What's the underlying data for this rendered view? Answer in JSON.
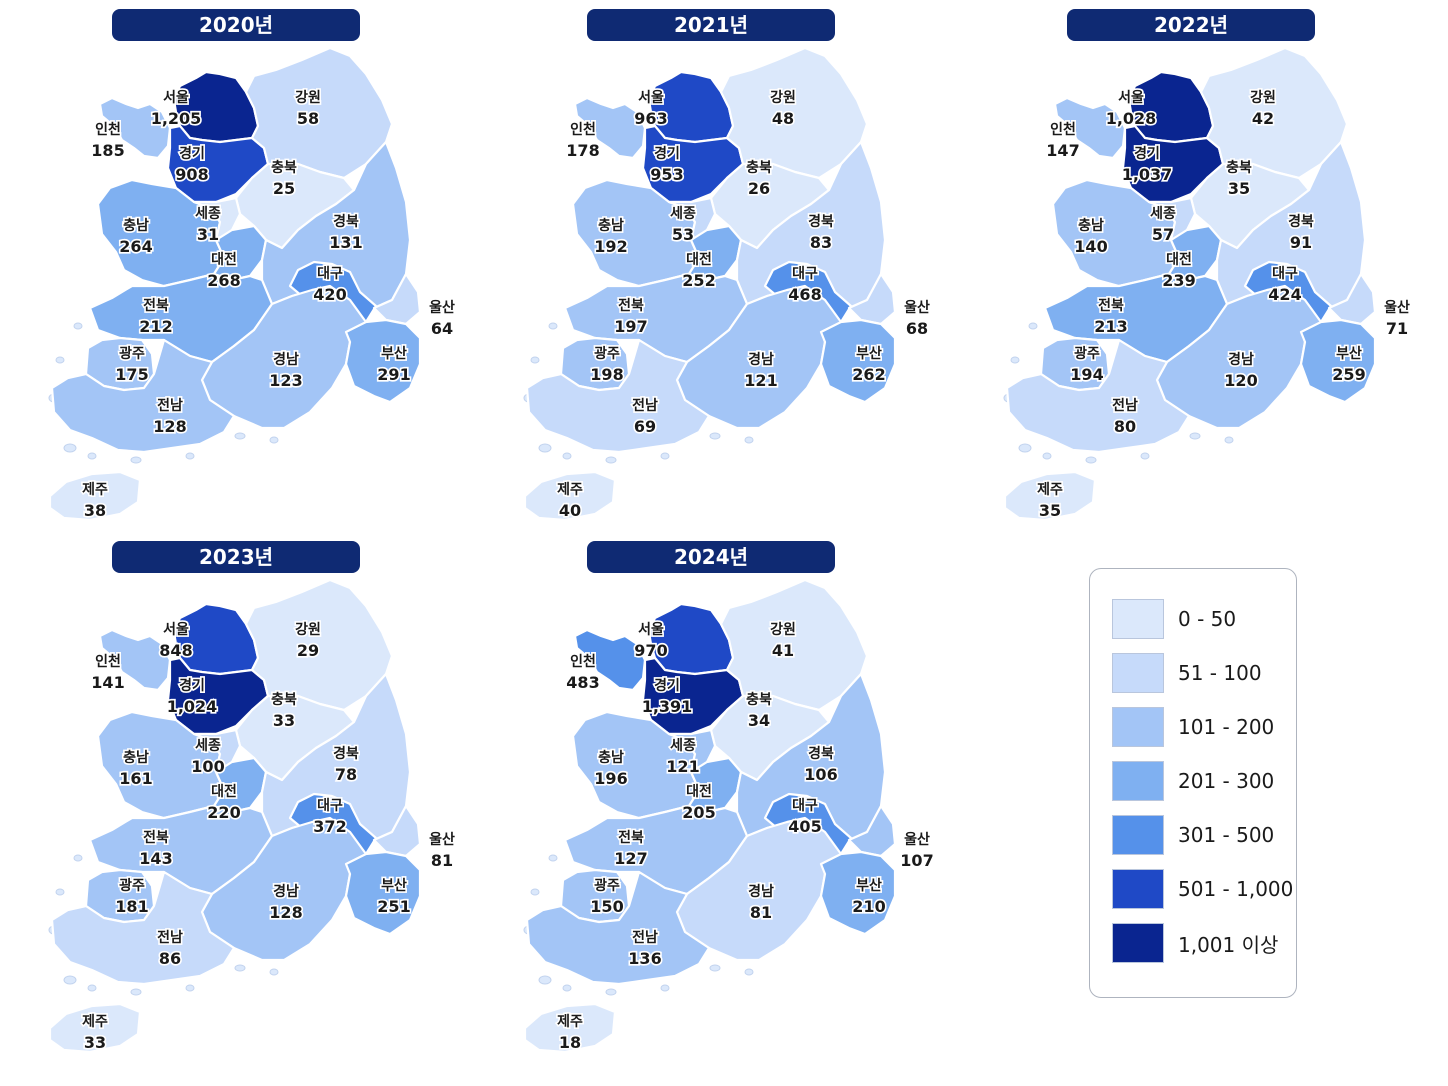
{
  "legend": {
    "items": [
      {
        "label": "0 - 50",
        "min": 0,
        "max": 50,
        "color": "#dbe8fb"
      },
      {
        "label": "51 - 100",
        "min": 51,
        "max": 100,
        "color": "#c6dafa"
      },
      {
        "label": "101 - 200",
        "min": 101,
        "max": 200,
        "color": "#a3c5f6"
      },
      {
        "label": "201 - 300",
        "min": 201,
        "max": 300,
        "color": "#7fb0f1"
      },
      {
        "label": "301 - 500",
        "min": 301,
        "max": 500,
        "color": "#5591ea"
      },
      {
        "label": "501 - 1,000",
        "min": 501,
        "max": 1000,
        "color": "#1f49c6"
      },
      {
        "label": "1,001 이상",
        "min": 1001,
        "max": 1000000,
        "color": "#0a2590"
      }
    ]
  },
  "panels": [
    {
      "year_label": "2020년",
      "values": {
        "서울": "1,205",
        "인천": "185",
        "경기": "908",
        "강원": "58",
        "충북": "25",
        "충남": "264",
        "세종": "31",
        "대전": "268",
        "경북": "131",
        "대구": "420",
        "울산": "64",
        "전북": "212",
        "광주": "175",
        "경남": "123",
        "부산": "291",
        "전남": "128",
        "제주": "38"
      }
    },
    {
      "year_label": "2021년",
      "values": {
        "서울": "963",
        "인천": "178",
        "경기": "953",
        "강원": "48",
        "충북": "26",
        "충남": "192",
        "세종": "53",
        "대전": "252",
        "경북": "83",
        "대구": "468",
        "울산": "68",
        "전북": "197",
        "광주": "198",
        "경남": "121",
        "부산": "262",
        "전남": "69",
        "제주": "40"
      }
    },
    {
      "year_label": "2022년",
      "values": {
        "서울": "1,028",
        "인천": "147",
        "경기": "1,037",
        "강원": "42",
        "충북": "35",
        "충남": "140",
        "세종": "57",
        "대전": "239",
        "경북": "91",
        "대구": "424",
        "울산": "71",
        "전북": "213",
        "광주": "194",
        "경남": "120",
        "부산": "259",
        "전남": "80",
        "제주": "35"
      }
    },
    {
      "year_label": "2023년",
      "values": {
        "서울": "848",
        "인천": "141",
        "경기": "1,024",
        "강원": "29",
        "충북": "33",
        "충남": "161",
        "세종": "100",
        "대전": "220",
        "경북": "78",
        "대구": "372",
        "울산": "81",
        "전북": "143",
        "광주": "181",
        "경남": "128",
        "부산": "251",
        "전남": "86",
        "제주": "33"
      }
    },
    {
      "year_label": "2024년",
      "values": {
        "서울": "970",
        "인천": "483",
        "경기": "1,391",
        "강원": "41",
        "충북": "34",
        "충남": "196",
        "세종": "121",
        "대전": "205",
        "경북": "106",
        "대구": "405",
        "울산": "107",
        "전북": "127",
        "광주": "150",
        "경남": "81",
        "부산": "210",
        "전남": "136",
        "제주": "18"
      }
    }
  ]
}
